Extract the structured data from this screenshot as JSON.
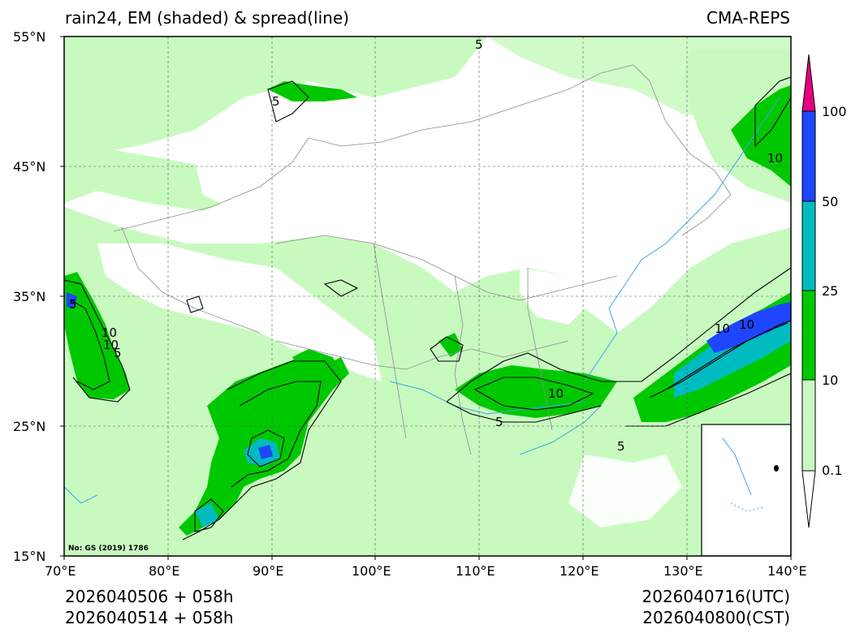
{
  "title_left": "rain24, EM (shaded) & spread(line)",
  "title_right": "CMA-REPS",
  "map": {
    "lat_ticks": [
      "55°N",
      "45°N",
      "35°N",
      "25°N",
      "15°N"
    ],
    "lon_ticks": [
      "70°E",
      "80°E",
      "90°E",
      "100°E",
      "110°E",
      "120°E",
      "130°E",
      "140°E"
    ],
    "extent": {
      "lon_min": 70,
      "lon_max": 140,
      "lat_min": 15,
      "lat_max": 55
    },
    "gs_note": "No: GS (2019) 1786",
    "contour_labels": [
      "5",
      "10",
      "5",
      "10",
      "5",
      "10",
      "5",
      "10",
      "5",
      "10",
      "10",
      "5"
    ]
  },
  "colorbar": {
    "levels": [
      "0.1",
      "10",
      "25",
      "50",
      "100"
    ],
    "colors": {
      "c0_1_10": "#c8fac0",
      "c10_25": "#00c800",
      "c25_50": "#00bcc0",
      "c50_100": "#1e46ff",
      "c100_plus": "#e6007e",
      "below": "#ffffff"
    }
  },
  "footer": {
    "init_utc": "2026040506  +  058h",
    "init_cst": "2026040514  +  058h",
    "valid_utc": "2026040716(UTC)",
    "valid_cst": "2026040800(CST)"
  }
}
